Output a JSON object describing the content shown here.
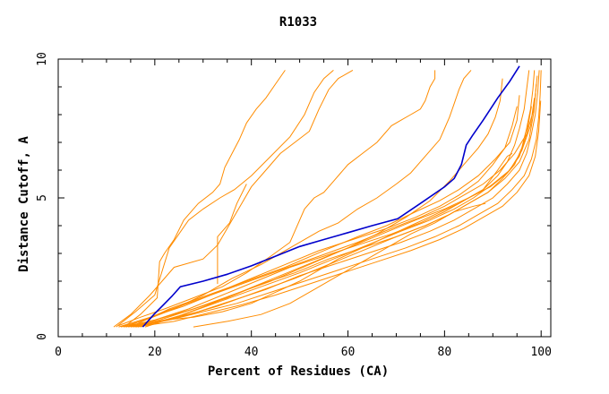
{
  "chart_data": {
    "type": "line",
    "title": "R1033",
    "xlabel": "Percent of Residues (CA)",
    "ylabel": "Distance Cutoff, A",
    "xlim": [
      0,
      102
    ],
    "ylim": [
      0,
      10
    ],
    "x_ticks": [
      0,
      20,
      40,
      60,
      80,
      100
    ],
    "y_ticks": [
      0,
      5,
      10
    ],
    "grid": false,
    "legend": "none",
    "colors": {
      "highlight": "#0000cc",
      "others": "#ff8c00",
      "axes": "#000000"
    },
    "highlight_series": {
      "x": [
        17.5,
        19.8,
        21.8,
        23.5,
        25.3,
        30.0,
        35.0,
        40.0,
        45.0,
        50.0,
        55.0,
        60.0,
        65.0,
        70.3,
        75.0,
        80.0,
        82.0,
        83.5,
        84.5,
        85.8,
        88.0,
        91.0,
        93.5,
        95.5
      ],
      "y": [
        0.35,
        0.8,
        1.15,
        1.45,
        1.8,
        2.0,
        2.25,
        2.55,
        2.9,
        3.25,
        3.5,
        3.75,
        4.0,
        4.25,
        4.8,
        5.4,
        5.7,
        6.2,
        6.9,
        7.25,
        7.8,
        8.6,
        9.2,
        9.75
      ]
    },
    "series": [
      {
        "x": [
          14.0,
          17.0,
          20.5,
          21.0,
          22.0,
          24.0,
          26.0,
          29.0,
          32.0,
          33.5,
          34.5,
          36.0,
          37.5,
          39.0,
          41.0,
          43.0,
          45.0,
          47.0
        ],
        "y": [
          0.4,
          0.8,
          1.4,
          2.7,
          3.0,
          3.5,
          4.2,
          4.8,
          5.2,
          5.5,
          6.1,
          6.6,
          7.1,
          7.7,
          8.2,
          8.6,
          9.1,
          9.6
        ]
      },
      {
        "x": [
          12.0,
          16.0,
          20.0,
          23.0,
          27.0,
          30.0,
          33.5,
          36.5,
          40.0,
          44.0,
          48.0,
          51.0,
          53.0,
          55.0,
          57.0
        ],
        "y": [
          0.35,
          0.9,
          1.5,
          3.2,
          4.2,
          4.6,
          5.0,
          5.3,
          5.8,
          6.5,
          7.2,
          8.0,
          8.8,
          9.3,
          9.6
        ]
      },
      {
        "x": [
          11.5,
          15.0,
          19.0,
          24.0,
          30.0,
          33.0,
          36.0,
          38.0,
          40.0,
          43.0,
          46.0,
          49.0,
          52.0,
          54.0,
          56.0,
          58.0,
          61.0
        ],
        "y": [
          0.35,
          0.8,
          1.5,
          2.5,
          2.8,
          3.3,
          4.2,
          4.8,
          5.4,
          6.0,
          6.6,
          7.0,
          7.4,
          8.2,
          8.9,
          9.3,
          9.6
        ]
      },
      {
        "x": [
          33.0,
          33.0,
          34.0,
          35.5,
          37.0,
          39.0
        ],
        "y": [
          1.9,
          3.6,
          3.8,
          4.1,
          4.8,
          5.5
        ]
      },
      {
        "x": [
          12.5,
          17.0,
          22.0,
          28.0,
          34.0,
          39.0,
          44.0,
          48.0,
          51.0,
          53.0,
          55.0,
          57.0,
          60.0,
          63.0,
          66.0,
          69.0,
          71.0,
          73.0,
          75.0,
          76.0,
          77.0,
          78.0,
          78.0
        ],
        "y": [
          0.4,
          0.7,
          1.0,
          1.4,
          1.8,
          2.3,
          2.9,
          3.4,
          4.6,
          5.0,
          5.2,
          5.6,
          6.2,
          6.6,
          7.0,
          7.6,
          7.8,
          8.0,
          8.2,
          8.5,
          9.0,
          9.3,
          9.6
        ]
      },
      {
        "x": [
          13.0,
          18.0,
          24.0,
          30.0,
          36.0,
          42.0,
          48.0,
          54.0,
          58.0,
          62.0,
          66.0,
          70.0,
          73.0,
          75.0,
          77.0,
          79.0,
          80.0,
          81.0,
          82.0,
          83.0,
          84.0,
          85.5
        ],
        "y": [
          0.35,
          0.6,
          1.0,
          1.5,
          2.1,
          2.6,
          3.2,
          3.8,
          4.1,
          4.6,
          5.0,
          5.5,
          5.9,
          6.3,
          6.7,
          7.1,
          7.5,
          7.9,
          8.4,
          8.9,
          9.3,
          9.6
        ]
      },
      {
        "x": [
          14.0,
          20.0,
          28.0,
          36.0,
          44.0,
          52.0,
          60.0,
          66.0,
          72.0,
          77.0,
          81.0,
          84.0,
          87.0,
          89.0,
          90.5,
          91.5,
          92.0
        ],
        "y": [
          0.35,
          0.6,
          1.0,
          1.5,
          2.0,
          2.6,
          3.2,
          3.7,
          4.3,
          4.9,
          5.6,
          6.2,
          6.8,
          7.3,
          7.9,
          8.5,
          9.3
        ]
      },
      {
        "x": [
          12.5,
          19.0,
          26.0,
          33.0,
          40.0,
          47.0,
          54.0,
          61.0,
          68.0,
          74.0,
          79.0,
          83.0,
          87.0,
          90.0,
          92.5,
          94.0,
          95.0
        ],
        "y": [
          0.35,
          0.7,
          1.1,
          1.6,
          2.1,
          2.6,
          3.1,
          3.5,
          3.9,
          4.3,
          4.7,
          5.1,
          5.6,
          6.2,
          6.8,
          7.6,
          8.3
        ]
      },
      {
        "x": [
          13.5,
          20.0,
          27.0,
          34.0,
          41.0,
          48.0,
          55.0,
          62.0,
          69.0,
          75.0,
          80.0,
          84.0,
          88.0,
          91.0,
          93.0,
          94.5,
          95.5,
          96.5,
          97.0,
          97.5
        ],
        "y": [
          0.35,
          0.6,
          1.0,
          1.5,
          2.0,
          2.5,
          2.9,
          3.3,
          3.7,
          4.1,
          4.5,
          4.9,
          5.3,
          5.8,
          6.3,
          6.9,
          7.5,
          8.2,
          8.9,
          9.6
        ]
      },
      {
        "x": [
          14.5,
          21.0,
          28.0,
          35.0,
          42.0,
          49.0,
          56.0,
          63.0,
          70.0,
          76.0,
          81.0,
          85.0,
          89.0,
          92.0,
          94.5,
          96.0,
          97.0,
          97.8,
          98.3,
          98.6
        ],
        "y": [
          0.35,
          0.6,
          1.0,
          1.4,
          1.9,
          2.3,
          2.8,
          3.2,
          3.6,
          4.0,
          4.4,
          4.8,
          5.2,
          5.7,
          6.2,
          6.8,
          7.5,
          8.2,
          8.9,
          9.6
        ]
      },
      {
        "x": [
          15.0,
          22.0,
          29.0,
          36.0,
          43.0,
          50.0,
          57.0,
          64.0,
          71.0,
          77.0,
          82.0,
          86.0,
          90.0,
          93.0,
          95.5,
          97.0,
          98.0,
          98.8,
          99.3,
          99.6
        ],
        "y": [
          0.35,
          0.6,
          0.9,
          1.3,
          1.7,
          2.2,
          2.6,
          3.0,
          3.4,
          3.8,
          4.2,
          4.6,
          5.0,
          5.5,
          6.0,
          6.6,
          7.3,
          8.0,
          8.8,
          9.6
        ]
      },
      {
        "x": [
          15.5,
          23.0,
          30.0,
          37.0,
          44.0,
          51.0,
          58.0,
          65.0,
          72.0,
          78.0,
          83.0,
          87.0,
          91.0,
          94.0,
          96.5,
          98.0,
          99.0,
          99.5,
          99.8,
          100.0
        ],
        "y": [
          0.35,
          0.6,
          0.9,
          1.2,
          1.6,
          2.0,
          2.4,
          2.8,
          3.2,
          3.6,
          4.0,
          4.4,
          4.8,
          5.3,
          5.8,
          6.4,
          7.1,
          7.9,
          8.7,
          9.6
        ]
      },
      {
        "x": [
          16.0,
          24.0,
          31.0,
          38.0,
          45.0,
          52.0,
          59.0,
          66.0,
          73.0,
          79.0,
          84.0,
          88.0,
          92.0,
          95.0,
          97.5,
          98.8,
          99.5,
          99.9
        ],
        "y": [
          0.35,
          0.55,
          0.85,
          1.15,
          1.5,
          1.9,
          2.3,
          2.7,
          3.1,
          3.5,
          3.9,
          4.3,
          4.7,
          5.2,
          5.8,
          6.5,
          7.4,
          8.5
        ]
      },
      {
        "x": [
          16.5,
          25.0,
          33.0,
          41.0,
          49.0,
          56.0,
          63.0,
          70.0,
          76.0,
          81.0,
          85.0,
          89.0,
          92.5,
          95.5,
          97.5,
          98.5,
          99.0
        ],
        "y": [
          0.35,
          0.7,
          1.1,
          1.6,
          2.1,
          2.6,
          3.1,
          3.6,
          4.0,
          4.4,
          4.8,
          5.2,
          5.7,
          6.3,
          7.1,
          8.1,
          9.1
        ]
      },
      {
        "x": [
          17.0,
          26.0,
          34.0,
          42.0,
          50.0,
          57.0,
          64.0,
          71.0,
          77.0,
          82.0,
          86.0,
          90.0,
          93.5,
          96.0,
          97.8,
          98.6
        ],
        "y": [
          0.35,
          0.8,
          1.3,
          1.8,
          2.3,
          2.8,
          3.3,
          3.8,
          4.2,
          4.6,
          5.0,
          5.5,
          6.0,
          6.7,
          7.6,
          8.6
        ]
      },
      {
        "x": [
          14.0,
          22.0,
          30.0,
          38.0,
          46.0,
          54.0,
          62.0,
          69.0,
          75.0,
          80.0,
          84.0,
          88.0,
          91.5,
          94.5,
          97.0,
          98.5,
          99.2
        ],
        "y": [
          0.35,
          0.9,
          1.4,
          1.9,
          2.4,
          2.9,
          3.4,
          3.9,
          4.3,
          4.7,
          5.1,
          5.5,
          6.0,
          6.6,
          7.3,
          8.2,
          9.4
        ]
      },
      {
        "x": [
          15.0,
          23.0,
          31.0,
          39.0,
          47.0,
          55.0,
          62.0,
          68.0,
          74.0,
          79.0,
          83.0,
          87.0,
          90.5,
          93.5,
          95.0,
          95.5
        ],
        "y": [
          0.35,
          1.0,
          1.5,
          2.0,
          2.5,
          3.1,
          3.6,
          4.0,
          4.5,
          4.9,
          5.3,
          5.8,
          6.4,
          7.0,
          7.8,
          8.7
        ]
      },
      {
        "x": [
          28.0,
          35.0,
          42.0,
          48.0,
          53.0,
          58.0,
          63.0,
          68.0,
          73.0,
          78.0,
          82.0,
          86.0,
          88.5
        ],
        "y": [
          0.35,
          0.55,
          0.8,
          1.2,
          1.7,
          2.2,
          2.7,
          3.2,
          3.7,
          4.1,
          4.5,
          4.7,
          4.8
        ]
      },
      {
        "x": [
          22.0,
          28.0,
          34.0,
          40.0,
          45.0,
          50.0,
          54.0,
          58.0,
          63.0,
          68.0,
          73.0,
          78.0,
          83.0,
          88.0,
          91.0,
          93.0,
          94.0
        ],
        "y": [
          0.6,
          0.7,
          0.9,
          1.2,
          1.6,
          2.0,
          2.4,
          2.8,
          3.2,
          3.6,
          4.0,
          4.4,
          4.8,
          5.3,
          6.0,
          6.5,
          6.6
        ]
      },
      {
        "x": [
          18.0,
          25.0,
          32.0,
          39.0,
          46.0,
          53.0,
          60.0,
          67.0,
          74.0,
          80.0,
          85.0,
          89.5,
          93.0,
          95.5,
          97.0,
          98.0
        ],
        "y": [
          0.35,
          0.75,
          1.2,
          1.7,
          2.2,
          2.7,
          3.2,
          3.7,
          4.2,
          4.6,
          5.0,
          5.4,
          5.9,
          6.5,
          7.3,
          8.3
        ]
      }
    ]
  }
}
